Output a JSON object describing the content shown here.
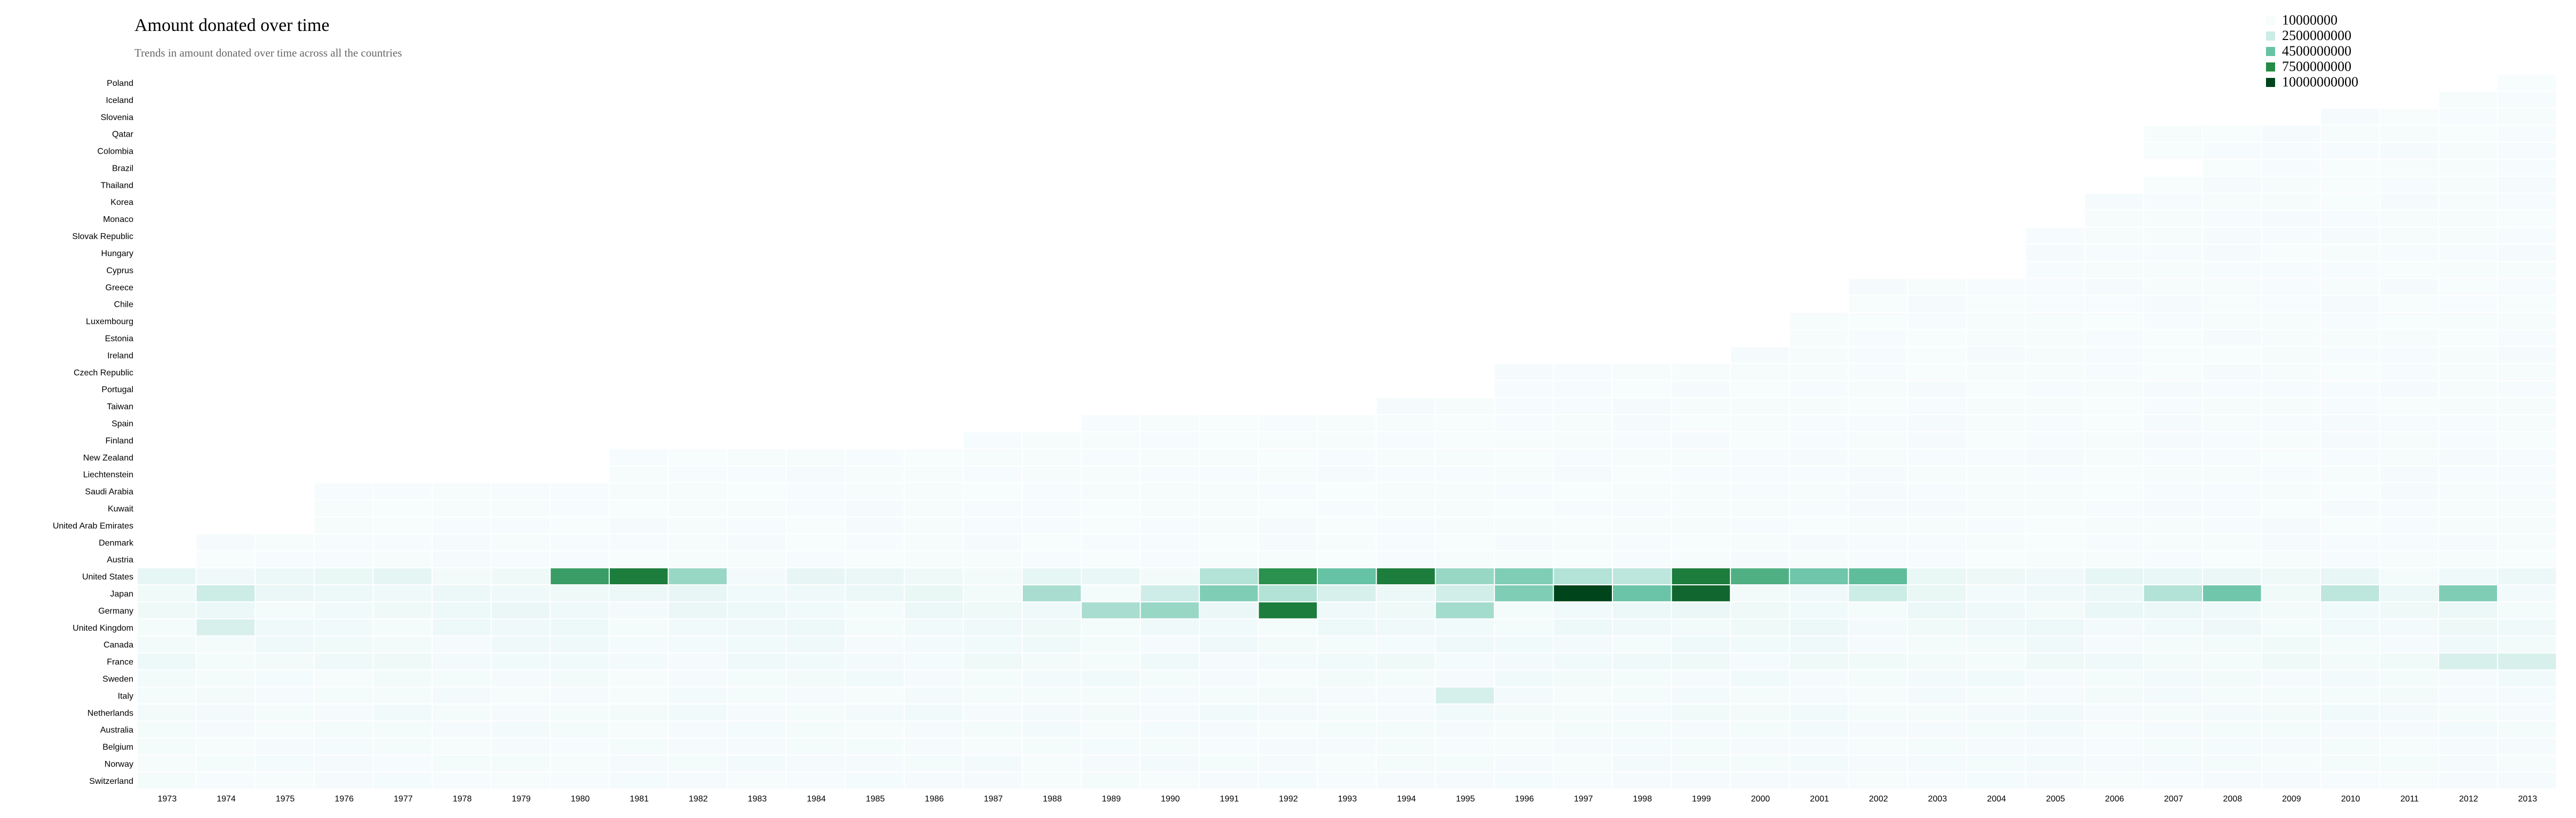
{
  "chart_data": {
    "type": "heatmap",
    "title": "Amount donated over time",
    "subtitle": "Trends in amount donated over time across all the countries",
    "x": [
      "1973",
      "1974",
      "1975",
      "1976",
      "1977",
      "1978",
      "1979",
      "1980",
      "1981",
      "1982",
      "1983",
      "1984",
      "1985",
      "1986",
      "1987",
      "1988",
      "1989",
      "1990",
      "1991",
      "1992",
      "1993",
      "1994",
      "1995",
      "1996",
      "1997",
      "1998",
      "1999",
      "2000",
      "2001",
      "2002",
      "2003",
      "2004",
      "2005",
      "2006",
      "2007",
      "2008",
      "2009",
      "2010",
      "2011",
      "2012",
      "2013"
    ],
    "y": [
      "Poland",
      "Iceland",
      "Slovenia",
      "Qatar",
      "Colombia",
      "Brazil",
      "Thailand",
      "Korea",
      "Monaco",
      "Slovak Republic",
      "Hungary",
      "Cyprus",
      "Greece",
      "Chile",
      "Luxembourg",
      "Estonia",
      "Ireland",
      "Czech Republic",
      "Portugal",
      "Taiwan",
      "Spain",
      "Finland",
      "New Zealand",
      "Liechtenstein",
      "Saudi Arabia",
      "Kuwait",
      "United Arab Emirates",
      "Denmark",
      "Austria",
      "United States",
      "Japan",
      "Germany",
      "United Kingdom",
      "Canada",
      "France",
      "Sweden",
      "Italy",
      "Netherlands",
      "Australia",
      "Belgium",
      "Norway",
      "Switzerland"
    ],
    "legend": {
      "labels": [
        "10000000",
        "2500000000",
        "4500000000",
        "7500000000",
        "10000000000"
      ],
      "thresholds": [
        10000000,
        2500000000,
        4500000000,
        7500000000,
        10000000000
      ],
      "colors": [
        "#f7fcfd",
        "#ccece6",
        "#66c2a4",
        "#238b45",
        "#00441b"
      ],
      "placement": "top-right"
    },
    "start_years": {
      "Poland": "2013",
      "Iceland": "2012",
      "Slovenia": "2010",
      "Qatar": "2007",
      "Colombia": "2007",
      "Brazil": "2008",
      "Thailand": "2007",
      "Korea": "2006",
      "Monaco": "2006",
      "Slovak Republic": "2005",
      "Hungary": "2005",
      "Cyprus": "2005",
      "Greece": "2002",
      "Chile": "2002",
      "Luxembourg": "2001",
      "Estonia": "2001",
      "Ireland": "2000",
      "Czech Republic": "1996",
      "Portugal": "1996",
      "Taiwan": "1994",
      "Spain": "1989",
      "Finland": "1987",
      "New Zealand": "1981",
      "Liechtenstein": "1981",
      "Saudi Arabia": "1976",
      "Kuwait": "1976",
      "United Arab Emirates": "1976",
      "Denmark": "1974",
      "Austria": "1974"
    },
    "notable_values": [
      {
        "country": "United States",
        "year": "1980",
        "value": 6500000000
      },
      {
        "country": "United States",
        "year": "1981",
        "value": 8000000000
      },
      {
        "country": "United States",
        "year": "1982",
        "value": 3500000000
      },
      {
        "country": "United States",
        "year": "1991",
        "value": 3000000000
      },
      {
        "country": "United States",
        "year": "1992",
        "value": 7200000000
      },
      {
        "country": "United States",
        "year": "1993",
        "value": 4500000000
      },
      {
        "country": "United States",
        "year": "1994",
        "value": 8000000000
      },
      {
        "country": "United States",
        "year": "1995",
        "value": 3500000000
      },
      {
        "country": "United States",
        "year": "1996",
        "value": 4000000000
      },
      {
        "country": "United States",
        "year": "1997",
        "value": 3000000000
      },
      {
        "country": "United States",
        "year": "1998",
        "value": 2800000000
      },
      {
        "country": "United States",
        "year": "1999",
        "value": 8000000000
      },
      {
        "country": "United States",
        "year": "2000",
        "value": 5500000000
      },
      {
        "country": "United States",
        "year": "2001",
        "value": 4300000000
      },
      {
        "country": "United States",
        "year": "2002",
        "value": 4800000000
      },
      {
        "country": "Japan",
        "year": "1974",
        "value": 2500000000
      },
      {
        "country": "Japan",
        "year": "1988",
        "value": 3200000000
      },
      {
        "country": "Japan",
        "year": "1990",
        "value": 2300000000
      },
      {
        "country": "Japan",
        "year": "1991",
        "value": 4000000000
      },
      {
        "country": "Japan",
        "year": "1992",
        "value": 3000000000
      },
      {
        "country": "Japan",
        "year": "1993",
        "value": 1800000000
      },
      {
        "country": "Japan",
        "year": "1995",
        "value": 2200000000
      },
      {
        "country": "Japan",
        "year": "1996",
        "value": 4000000000
      },
      {
        "country": "Japan",
        "year": "1997",
        "value": 10000000000
      },
      {
        "country": "Japan",
        "year": "1998",
        "value": 4400000000
      },
      {
        "country": "Japan",
        "year": "1999",
        "value": 8800000000
      },
      {
        "country": "Japan",
        "year": "2002",
        "value": 2500000000
      },
      {
        "country": "Japan",
        "year": "2007",
        "value": 3000000000
      },
      {
        "country": "Japan",
        "year": "2008",
        "value": 4300000000
      },
      {
        "country": "Japan",
        "year": "2010",
        "value": 2800000000
      },
      {
        "country": "Japan",
        "year": "2012",
        "value": 4000000000
      },
      {
        "country": "Germany",
        "year": "1989",
        "value": 3200000000
      },
      {
        "country": "Germany",
        "year": "1990",
        "value": 3500000000
      },
      {
        "country": "Germany",
        "year": "1992",
        "value": 8000000000
      },
      {
        "country": "Germany",
        "year": "1995",
        "value": 3300000000
      },
      {
        "country": "United Kingdom",
        "year": "1974",
        "value": 1800000000
      },
      {
        "country": "Italy",
        "year": "1995",
        "value": 2000000000
      },
      {
        "country": "France",
        "year": "2012",
        "value": 1800000000
      },
      {
        "country": "France",
        "year": "2013",
        "value": 1800000000
      }
    ]
  }
}
